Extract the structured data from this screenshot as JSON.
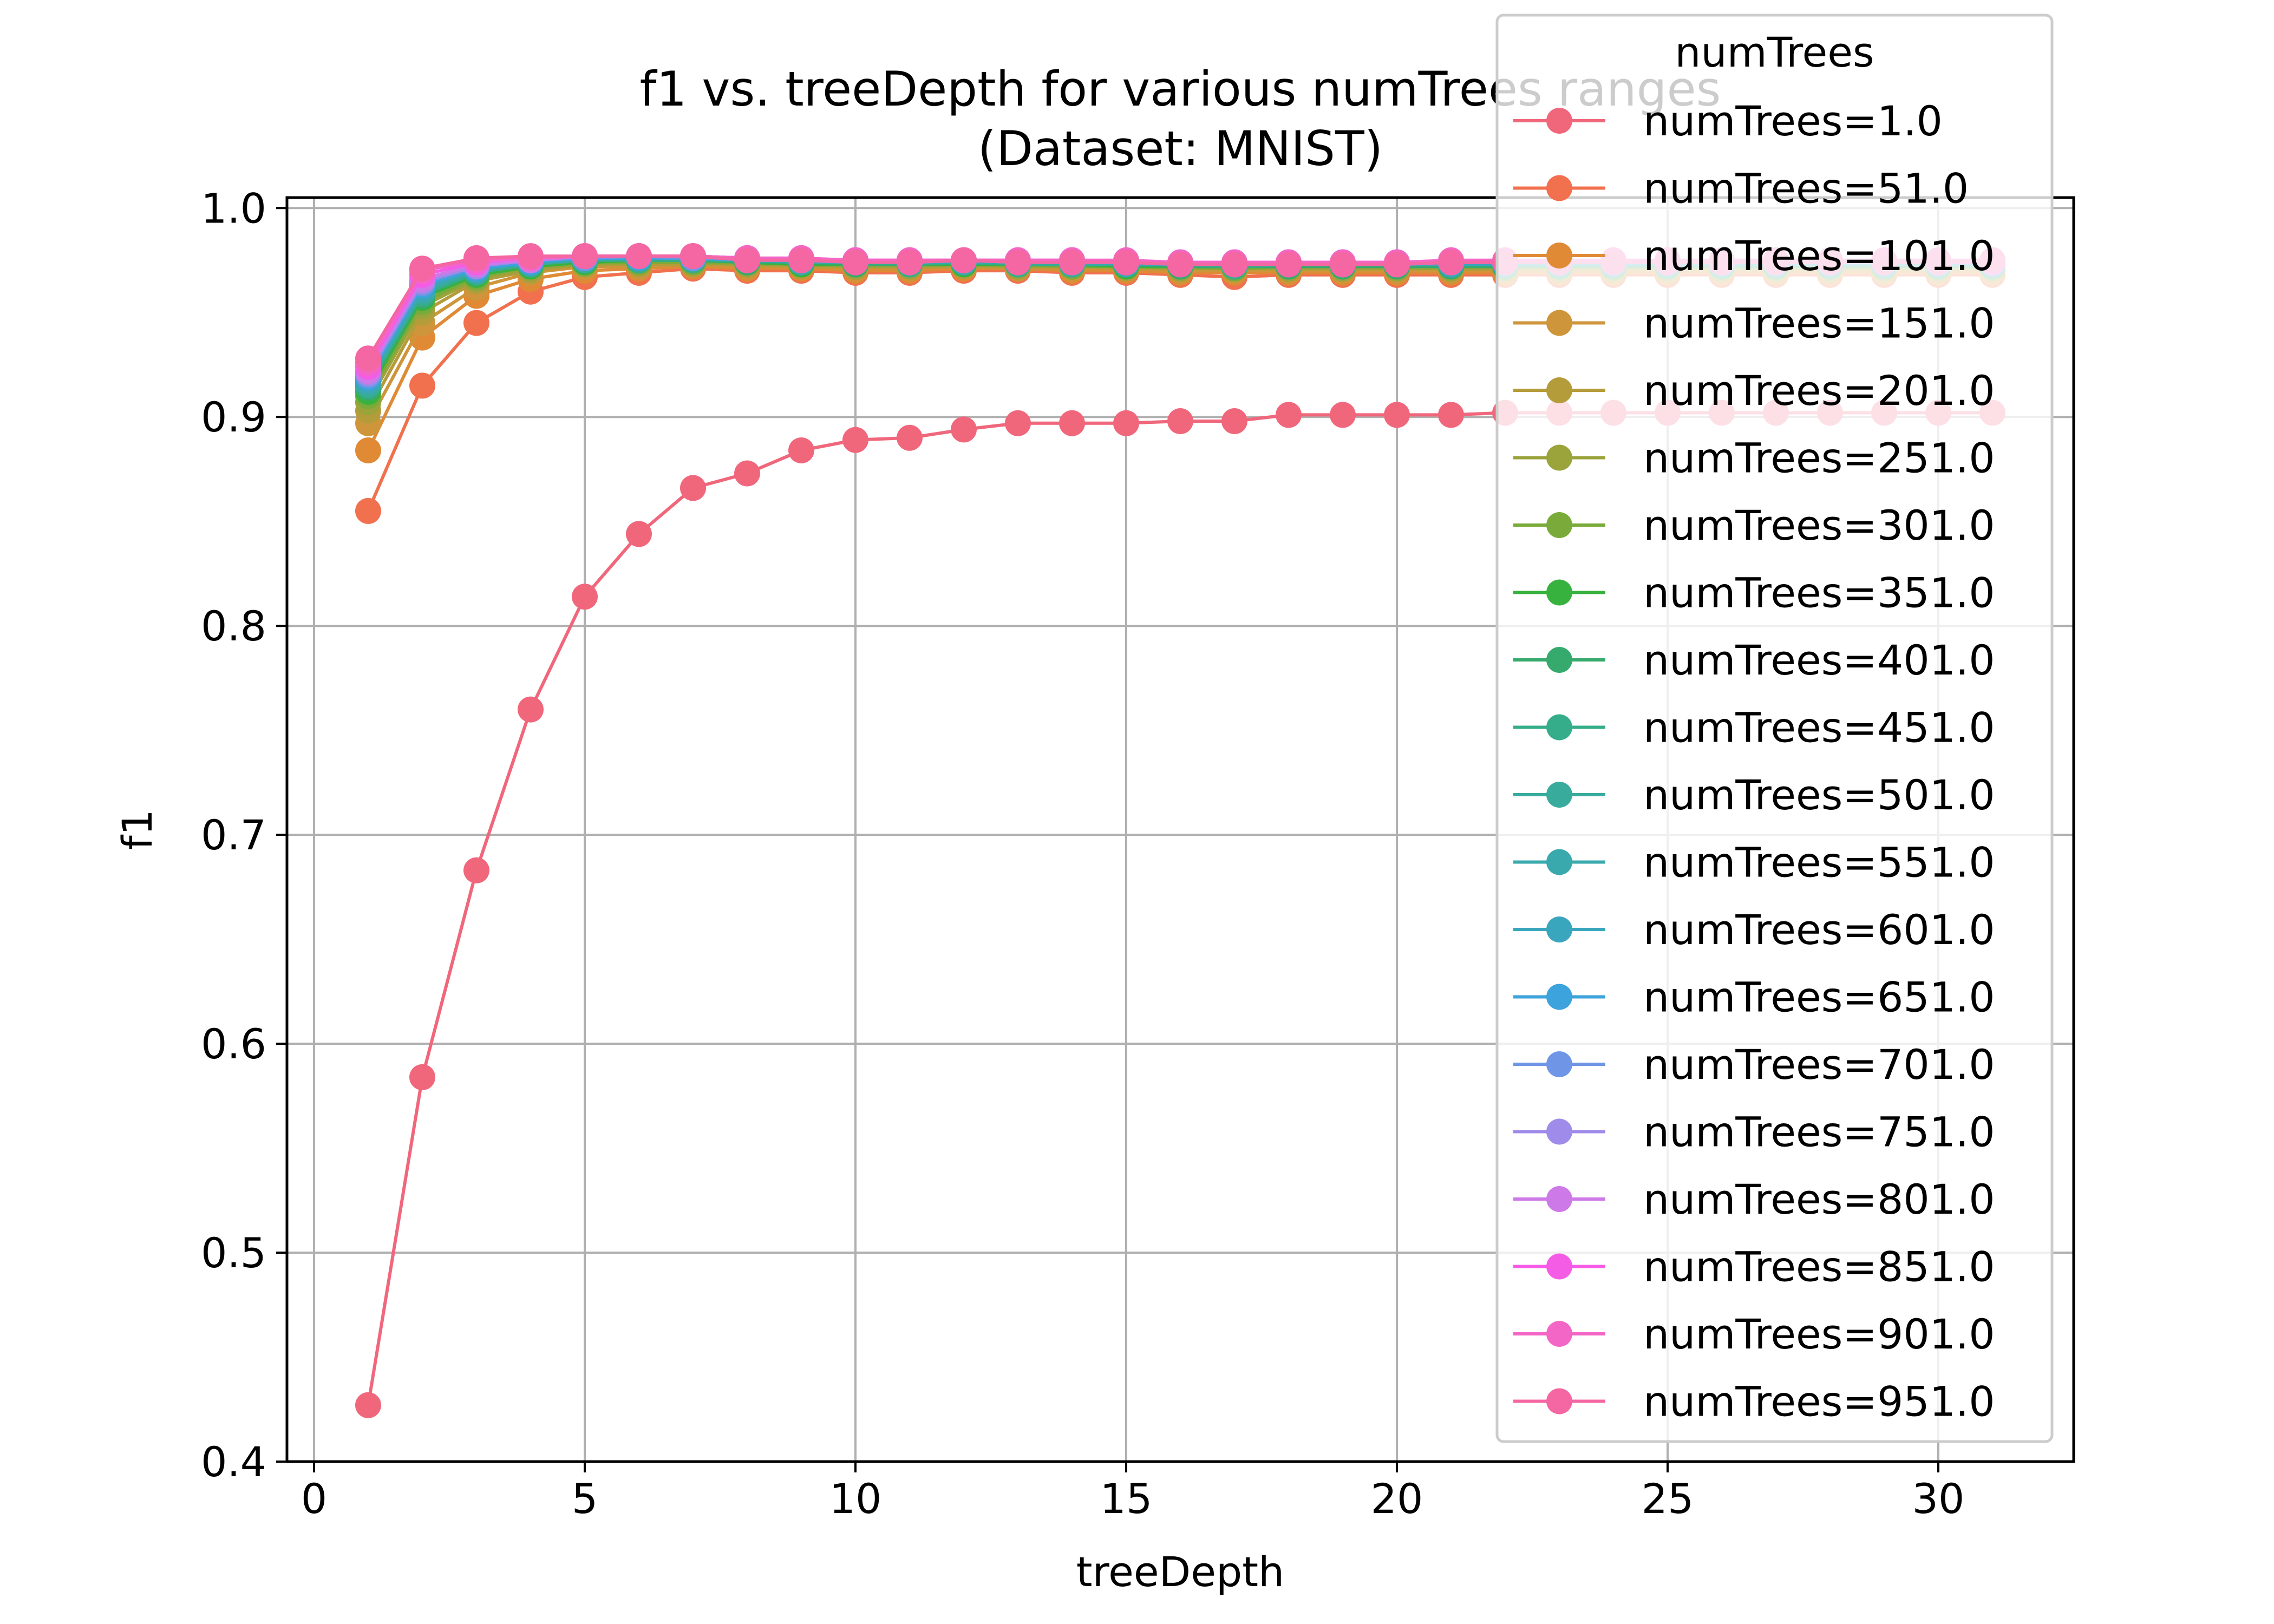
{
  "chart_data": {
    "type": "line",
    "title_line1": "f1 vs. treeDepth for various numTrees ranges",
    "title_line2": "(Dataset: MNIST)",
    "xlabel": "treeDepth",
    "ylabel": "f1",
    "xlim": [
      -0.5,
      32.5
    ],
    "ylim": [
      0.4,
      1.005
    ],
    "xticks": [
      0,
      5,
      10,
      15,
      20,
      25,
      30
    ],
    "xtick_labels": [
      "0",
      "5",
      "10",
      "15",
      "20",
      "25",
      "30"
    ],
    "yticks": [
      0.4,
      0.5,
      0.6,
      0.7,
      0.8,
      0.9,
      1.0
    ],
    "ytick_labels": [
      "0.4",
      "0.5",
      "0.6",
      "0.7",
      "0.8",
      "0.9",
      "1.0"
    ],
    "grid": true,
    "legend_title": "numTrees",
    "legend_position": "upper-right",
    "x": [
      1,
      2,
      3,
      4,
      5,
      6,
      7,
      8,
      9,
      10,
      11,
      12,
      13,
      14,
      15,
      16,
      17,
      18,
      19,
      20,
      21,
      22,
      23,
      24,
      25,
      26,
      27,
      28,
      29,
      30,
      31
    ],
    "series": [
      {
        "name": "numTrees=1.0",
        "color": "#f0677c",
        "values": [
          0.427,
          0.584,
          0.683,
          0.76,
          0.814,
          0.844,
          0.866,
          0.873,
          0.884,
          0.889,
          0.89,
          0.894,
          0.897,
          0.897,
          0.897,
          0.898,
          0.898,
          0.901,
          0.901,
          0.901,
          0.901,
          0.902,
          0.902,
          0.902,
          0.902,
          0.902,
          0.902,
          0.902,
          0.902,
          0.902,
          0.902
        ]
      },
      {
        "name": "numTrees=51.0",
        "color": "#f1704e",
        "values": [
          0.855,
          0.915,
          0.945,
          0.96,
          0.967,
          0.969,
          0.971,
          0.97,
          0.97,
          0.969,
          0.969,
          0.97,
          0.97,
          0.969,
          0.969,
          0.968,
          0.967,
          0.968,
          0.968,
          0.968,
          0.968,
          0.968,
          0.968,
          0.968,
          0.968,
          0.968,
          0.968,
          0.968,
          0.968,
          0.968,
          0.968
        ]
      },
      {
        "name": "numTrees=101.0",
        "color": "#e08a35",
        "values": [
          0.884,
          0.938,
          0.958,
          0.966,
          0.97,
          0.971,
          0.972,
          0.971,
          0.971,
          0.97,
          0.97,
          0.971,
          0.971,
          0.97,
          0.97,
          0.969,
          0.969,
          0.969,
          0.969,
          0.969,
          0.969,
          0.969,
          0.969,
          0.969,
          0.969,
          0.969,
          0.969,
          0.969,
          0.969,
          0.969,
          0.969
        ]
      },
      {
        "name": "numTrees=151.0",
        "color": "#ce953a",
        "values": [
          0.897,
          0.945,
          0.962,
          0.969,
          0.972,
          0.972,
          0.973,
          0.972,
          0.972,
          0.971,
          0.971,
          0.972,
          0.971,
          0.971,
          0.971,
          0.97,
          0.97,
          0.97,
          0.97,
          0.97,
          0.97,
          0.97,
          0.97,
          0.97,
          0.97,
          0.97,
          0.97,
          0.97,
          0.97,
          0.97,
          0.97
        ]
      },
      {
        "name": "numTrees=201.0",
        "color": "#b59c3a",
        "values": [
          0.903,
          0.95,
          0.965,
          0.97,
          0.973,
          0.973,
          0.973,
          0.973,
          0.972,
          0.972,
          0.972,
          0.972,
          0.972,
          0.972,
          0.971,
          0.971,
          0.971,
          0.971,
          0.971,
          0.971,
          0.971,
          0.971,
          0.971,
          0.971,
          0.971,
          0.971,
          0.971,
          0.971,
          0.971,
          0.971,
          0.971
        ]
      },
      {
        "name": "numTrees=251.0",
        "color": "#9ba33b",
        "values": [
          0.907,
          0.953,
          0.966,
          0.971,
          0.973,
          0.974,
          0.974,
          0.973,
          0.973,
          0.972,
          0.972,
          0.973,
          0.972,
          0.972,
          0.972,
          0.971,
          0.971,
          0.971,
          0.971,
          0.971,
          0.971,
          0.971,
          0.971,
          0.971,
          0.971,
          0.971,
          0.971,
          0.971,
          0.971,
          0.971,
          0.971
        ]
      },
      {
        "name": "numTrees=301.0",
        "color": "#7aab3a",
        "values": [
          0.91,
          0.955,
          0.967,
          0.972,
          0.974,
          0.974,
          0.974,
          0.974,
          0.973,
          0.973,
          0.973,
          0.973,
          0.973,
          0.972,
          0.972,
          0.972,
          0.971,
          0.972,
          0.972,
          0.972,
          0.972,
          0.972,
          0.972,
          0.972,
          0.972,
          0.972,
          0.972,
          0.972,
          0.972,
          0.972,
          0.972
        ]
      },
      {
        "name": "numTrees=351.0",
        "color": "#38b23e",
        "values": [
          0.912,
          0.957,
          0.968,
          0.972,
          0.974,
          0.975,
          0.975,
          0.974,
          0.973,
          0.973,
          0.973,
          0.973,
          0.973,
          0.973,
          0.972,
          0.972,
          0.972,
          0.972,
          0.972,
          0.972,
          0.972,
          0.972,
          0.972,
          0.972,
          0.972,
          0.972,
          0.972,
          0.972,
          0.972,
          0.972,
          0.972
        ]
      },
      {
        "name": "numTrees=401.0",
        "color": "#36aa6c",
        "values": [
          0.914,
          0.958,
          0.969,
          0.973,
          0.975,
          0.975,
          0.975,
          0.974,
          0.974,
          0.973,
          0.973,
          0.974,
          0.973,
          0.973,
          0.973,
          0.972,
          0.972,
          0.972,
          0.972,
          0.972,
          0.972,
          0.972,
          0.972,
          0.972,
          0.972,
          0.972,
          0.972,
          0.972,
          0.972,
          0.972,
          0.972
        ]
      },
      {
        "name": "numTrees=451.0",
        "color": "#36ad8a",
        "values": [
          0.915,
          0.959,
          0.969,
          0.973,
          0.975,
          0.975,
          0.975,
          0.975,
          0.974,
          0.974,
          0.973,
          0.974,
          0.973,
          0.973,
          0.973,
          0.973,
          0.972,
          0.973,
          0.973,
          0.973,
          0.973,
          0.973,
          0.973,
          0.973,
          0.973,
          0.973,
          0.973,
          0.973,
          0.973,
          0.973,
          0.973
        ]
      },
      {
        "name": "numTrees=501.0",
        "color": "#38ab9d",
        "values": [
          0.916,
          0.96,
          0.97,
          0.973,
          0.975,
          0.976,
          0.976,
          0.975,
          0.974,
          0.974,
          0.974,
          0.974,
          0.974,
          0.973,
          0.973,
          0.973,
          0.973,
          0.973,
          0.973,
          0.973,
          0.973,
          0.973,
          0.973,
          0.973,
          0.973,
          0.973,
          0.973,
          0.973,
          0.973,
          0.973,
          0.973
        ]
      },
      {
        "name": "numTrees=551.0",
        "color": "#39a9ad",
        "values": [
          0.917,
          0.961,
          0.97,
          0.974,
          0.976,
          0.976,
          0.976,
          0.975,
          0.974,
          0.974,
          0.974,
          0.974,
          0.974,
          0.974,
          0.973,
          0.973,
          0.973,
          0.973,
          0.973,
          0.973,
          0.973,
          0.973,
          0.973,
          0.973,
          0.973,
          0.973,
          0.973,
          0.973,
          0.973,
          0.973,
          0.973
        ]
      },
      {
        "name": "numTrees=601.0",
        "color": "#3aa6bd",
        "values": [
          0.918,
          0.962,
          0.971,
          0.974,
          0.976,
          0.976,
          0.976,
          0.975,
          0.975,
          0.974,
          0.974,
          0.975,
          0.974,
          0.974,
          0.974,
          0.973,
          0.973,
          0.973,
          0.973,
          0.973,
          0.973,
          0.973,
          0.973,
          0.973,
          0.973,
          0.973,
          0.973,
          0.973,
          0.973,
          0.973,
          0.973
        ]
      },
      {
        "name": "numTrees=651.0",
        "color": "#3ca3dc",
        "values": [
          0.919,
          0.963,
          0.971,
          0.974,
          0.976,
          0.976,
          0.976,
          0.975,
          0.975,
          0.974,
          0.974,
          0.975,
          0.974,
          0.974,
          0.974,
          0.973,
          0.973,
          0.974,
          0.974,
          0.974,
          0.974,
          0.974,
          0.974,
          0.974,
          0.974,
          0.974,
          0.974,
          0.974,
          0.974,
          0.974,
          0.974
        ]
      },
      {
        "name": "numTrees=701.0",
        "color": "#6f96e6",
        "values": [
          0.92,
          0.964,
          0.972,
          0.975,
          0.976,
          0.977,
          0.976,
          0.976,
          0.975,
          0.975,
          0.974,
          0.975,
          0.974,
          0.974,
          0.974,
          0.974,
          0.973,
          0.974,
          0.974,
          0.974,
          0.974,
          0.974,
          0.974,
          0.974,
          0.974,
          0.974,
          0.974,
          0.974,
          0.974,
          0.974,
          0.974
        ]
      },
      {
        "name": "numTrees=751.0",
        "color": "#9f8be9",
        "values": [
          0.921,
          0.965,
          0.972,
          0.975,
          0.977,
          0.977,
          0.977,
          0.976,
          0.975,
          0.975,
          0.974,
          0.975,
          0.974,
          0.974,
          0.974,
          0.974,
          0.974,
          0.974,
          0.974,
          0.974,
          0.974,
          0.974,
          0.974,
          0.974,
          0.974,
          0.974,
          0.974,
          0.974,
          0.974,
          0.974,
          0.974
        ]
      },
      {
        "name": "numTrees=801.0",
        "color": "#cd79e8",
        "values": [
          0.922,
          0.966,
          0.973,
          0.975,
          0.977,
          0.977,
          0.977,
          0.976,
          0.975,
          0.975,
          0.975,
          0.975,
          0.975,
          0.975,
          0.974,
          0.974,
          0.974,
          0.974,
          0.974,
          0.974,
          0.974,
          0.974,
          0.974,
          0.974,
          0.974,
          0.974,
          0.974,
          0.974,
          0.974,
          0.974,
          0.974
        ]
      },
      {
        "name": "numTrees=851.0",
        "color": "#f55ce6",
        "values": [
          0.924,
          0.968,
          0.974,
          0.976,
          0.977,
          0.977,
          0.977,
          0.976,
          0.976,
          0.975,
          0.975,
          0.975,
          0.975,
          0.975,
          0.974,
          0.974,
          0.974,
          0.974,
          0.974,
          0.974,
          0.974,
          0.974,
          0.974,
          0.974,
          0.974,
          0.974,
          0.974,
          0.974,
          0.974,
          0.974,
          0.974
        ]
      },
      {
        "name": "numTrees=901.0",
        "color": "#f466c5",
        "values": [
          0.926,
          0.97,
          0.975,
          0.976,
          0.977,
          0.977,
          0.977,
          0.976,
          0.976,
          0.975,
          0.975,
          0.975,
          0.975,
          0.975,
          0.975,
          0.974,
          0.974,
          0.974,
          0.974,
          0.974,
          0.975,
          0.975,
          0.975,
          0.975,
          0.975,
          0.975,
          0.975,
          0.975,
          0.975,
          0.975,
          0.975
        ]
      },
      {
        "name": "numTrees=951.0",
        "color": "#f467a3",
        "values": [
          0.928,
          0.971,
          0.976,
          0.977,
          0.977,
          0.977,
          0.977,
          0.975,
          0.975,
          0.974,
          0.974,
          0.975,
          0.974,
          0.974,
          0.974,
          0.973,
          0.973,
          0.973,
          0.973,
          0.973,
          0.974,
          0.974,
          0.974,
          0.974,
          0.974,
          0.974,
          0.974,
          0.974,
          0.974,
          0.974,
          0.975
        ]
      }
    ]
  }
}
